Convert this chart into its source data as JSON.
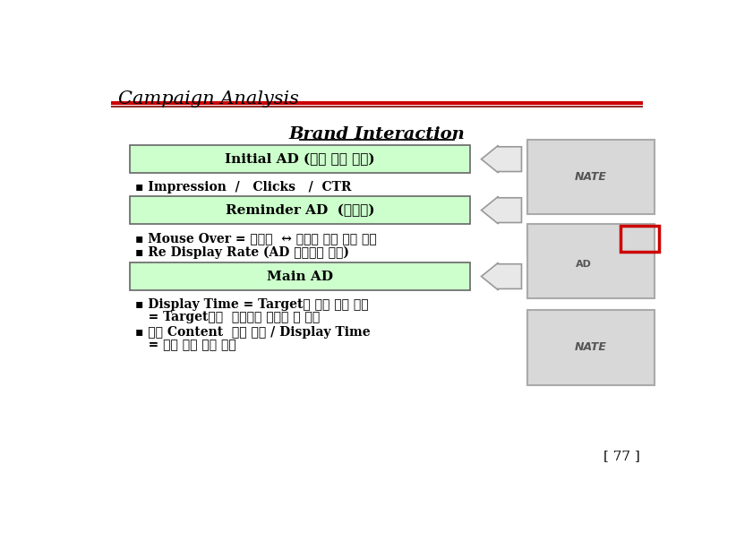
{
  "title": "Campaign Analysis",
  "subtitle": "Brand Interaction",
  "bg_color": "#ffffff",
  "title_color": "#000000",
  "subtitle_color": "#000000",
  "red_line_color": "#cc0000",
  "box_fill_color": "#ccffcc",
  "box_edge_color": "#666666",
  "box1_text": "Initial AD (초기 강제 노출)",
  "box2_text": "Reminder AD  (상기용)",
  "box3_text": "Main AD",
  "bullet1": "▪ Impression  /   Clicks   /  CTR",
  "bullet2a": "▪ Mouse Over = 자발적  ↔ 적극적 정보 접근 행위",
  "bullet2b": "▪ Re Display Rate (AD 재노출을 통한)",
  "bullet3a": "▪ Display Time = Target의 광고 관심 정도",
  "bullet3b": "   = Target들이  집중하여 광고를 본 시간",
  "bullet3c": "▪ 세부 Content  클릭 횟수 / Display Time",
  "bullet3d": "   = 특정 정보 관심 정도",
  "page_num": "[ 77 ]",
  "arrow_fill": "#e8e8e8",
  "arrow_edge": "#999999",
  "ss_fill": "#d8d8d8",
  "ss_edge": "#aaaaaa"
}
